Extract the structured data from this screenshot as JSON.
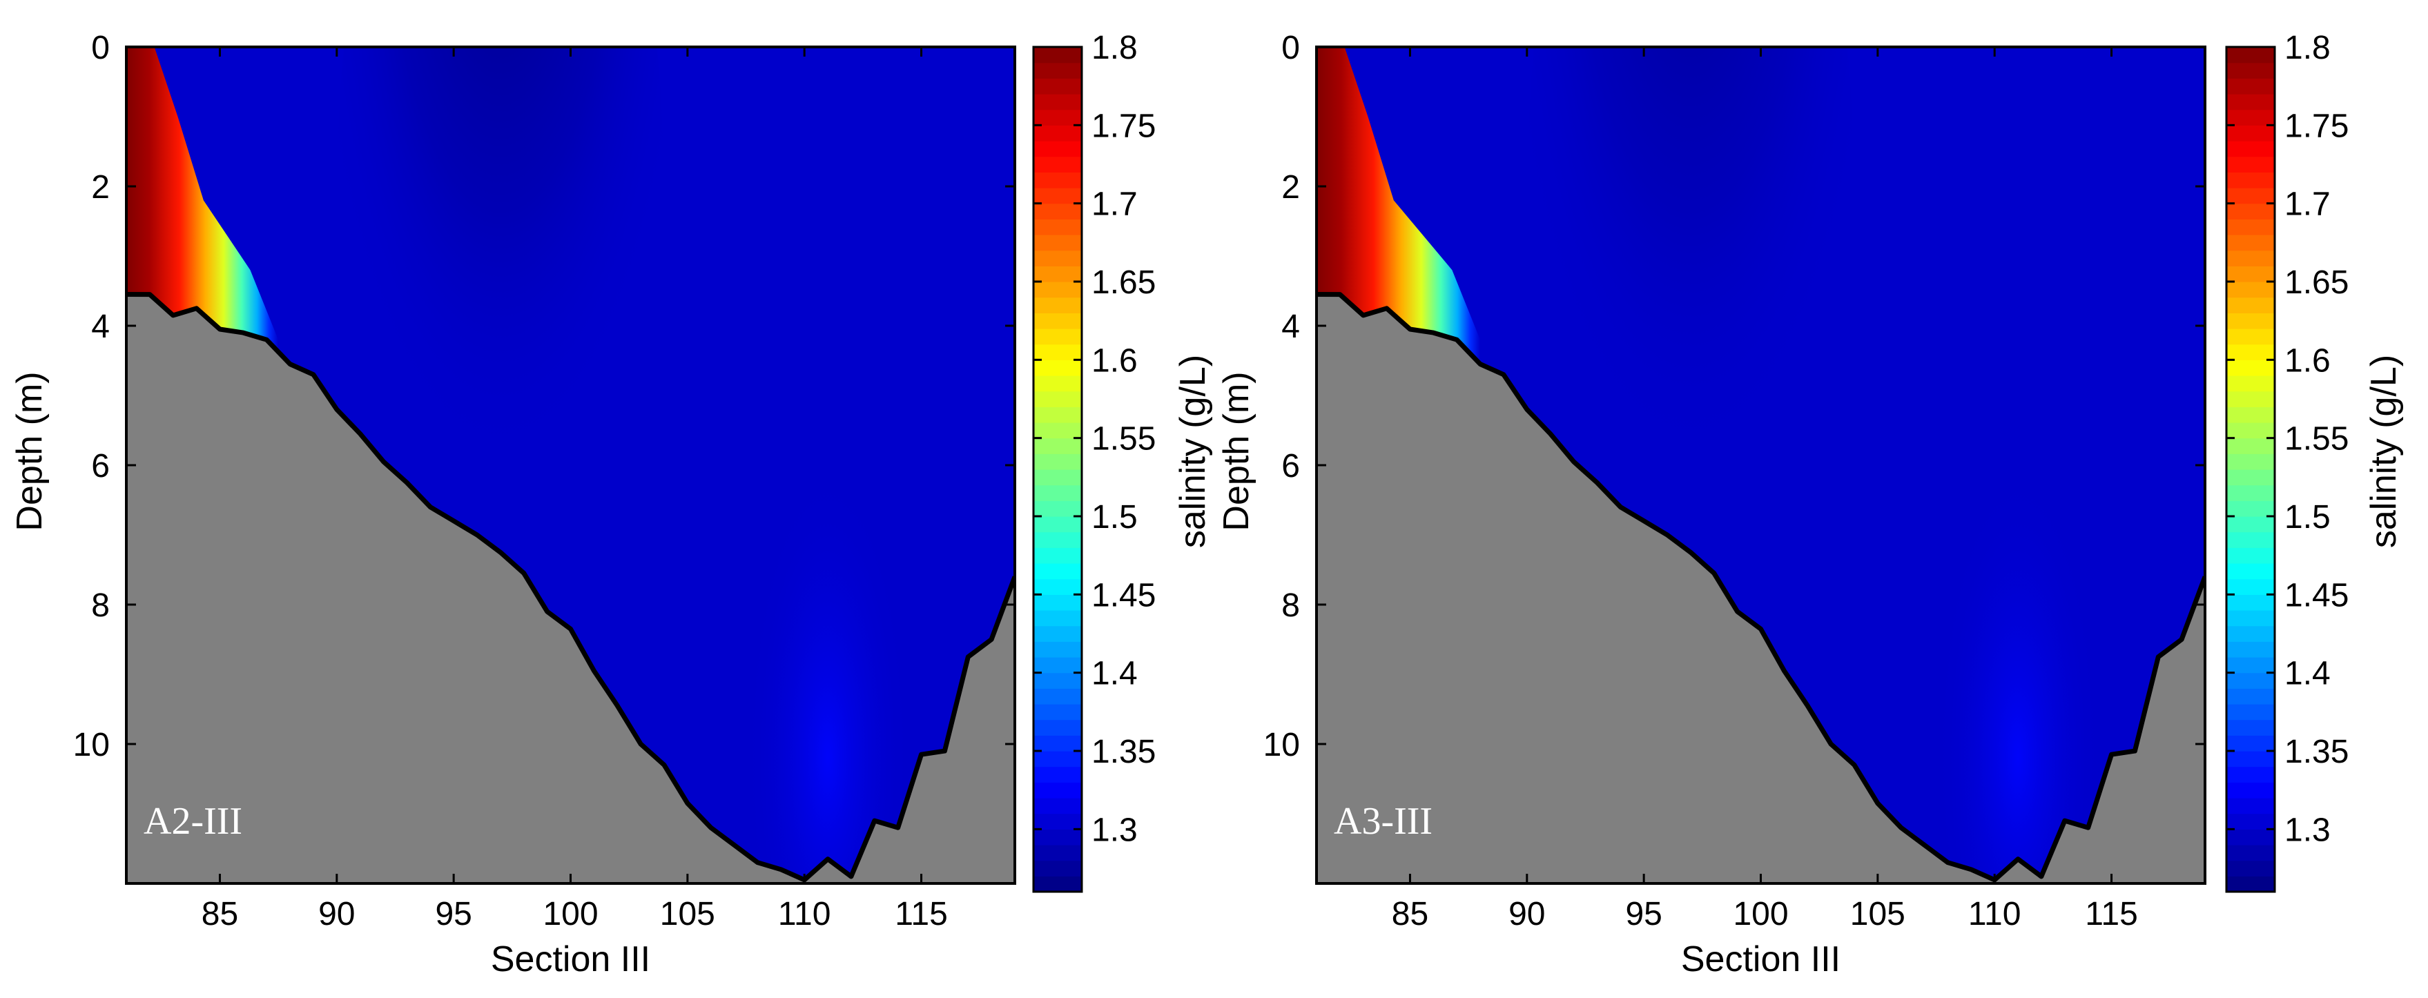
{
  "chart_data": [
    {
      "type": "contourf",
      "panel_label": "A2-III",
      "xlabel": "Section III",
      "ylabel": "Depth (m)",
      "colorbar_label": "salinity (g/L)",
      "xlim": [
        81,
        119
      ],
      "ylim": [
        12,
        0
      ],
      "x_ticks": [
        85,
        90,
        95,
        100,
        105,
        110,
        115
      ],
      "y_ticks": [
        0,
        2,
        4,
        6,
        8,
        10
      ],
      "clim": [
        1.26,
        1.8
      ],
      "colorbar_ticks": [
        1.3,
        1.35,
        1.4,
        1.45,
        1.5,
        1.55,
        1.6,
        1.65,
        1.7,
        1.75,
        1.8
      ],
      "colormap": "jet",
      "bed_color": "#808080",
      "bed_profile": {
        "x": [
          81,
          82,
          83,
          84,
          85,
          86,
          87,
          88,
          89,
          90,
          91,
          92,
          93,
          94,
          95,
          96,
          97,
          98,
          99,
          100,
          101,
          102,
          103,
          104,
          105,
          106,
          107,
          108,
          109,
          110,
          111,
          112,
          113,
          114,
          115,
          116,
          117,
          118,
          119
        ],
        "depth": [
          3.55,
          3.55,
          3.85,
          3.75,
          4.05,
          4.1,
          4.2,
          4.55,
          4.7,
          5.2,
          5.55,
          5.95,
          6.25,
          6.6,
          6.8,
          7.0,
          7.25,
          7.55,
          8.1,
          8.35,
          8.95,
          9.45,
          10.0,
          10.3,
          10.85,
          11.2,
          11.45,
          11.7,
          11.8,
          11.95,
          11.65,
          11.9,
          11.1,
          11.2,
          10.15,
          10.1,
          8.75,
          8.5,
          7.6
        ]
      },
      "salinity_features": {
        "high_salinity_core_x": [
          81,
          87.5
        ],
        "high_salinity_core_max": 1.8,
        "low_salinity_core_x": 97,
        "low_salinity_core_min": 1.26,
        "background": 1.3
      }
    },
    {
      "type": "contourf",
      "panel_label": "A3-III",
      "xlabel": "Section III",
      "ylabel": "Depth (m)",
      "colorbar_label": "salinity (g/L)",
      "xlim": [
        81,
        119
      ],
      "ylim": [
        12,
        0
      ],
      "x_ticks": [
        85,
        90,
        95,
        100,
        105,
        110,
        115
      ],
      "y_ticks": [
        0,
        2,
        4,
        6,
        8,
        10
      ],
      "clim": [
        1.26,
        1.8
      ],
      "colorbar_ticks": [
        1.3,
        1.35,
        1.4,
        1.45,
        1.5,
        1.55,
        1.6,
        1.65,
        1.7,
        1.75,
        1.8
      ],
      "colormap": "jet",
      "bed_color": "#808080",
      "bed_profile": {
        "x": [
          81,
          82,
          83,
          84,
          85,
          86,
          87,
          88,
          89,
          90,
          91,
          92,
          93,
          94,
          95,
          96,
          97,
          98,
          99,
          100,
          101,
          102,
          103,
          104,
          105,
          106,
          107,
          108,
          109,
          110,
          111,
          112,
          113,
          114,
          115,
          116,
          117,
          118,
          119
        ],
        "depth": [
          3.55,
          3.55,
          3.85,
          3.75,
          4.05,
          4.1,
          4.2,
          4.55,
          4.7,
          5.2,
          5.55,
          5.95,
          6.25,
          6.6,
          6.8,
          7.0,
          7.25,
          7.55,
          8.1,
          8.35,
          8.95,
          9.45,
          10.0,
          10.3,
          10.85,
          11.2,
          11.45,
          11.7,
          11.8,
          11.95,
          11.65,
          11.9,
          11.1,
          11.2,
          10.15,
          10.1,
          8.75,
          8.5,
          7.6
        ]
      },
      "salinity_features": {
        "high_salinity_core_x": [
          81,
          88
        ],
        "high_salinity_core_max": 1.8,
        "low_salinity_core_x": 97,
        "low_salinity_core_min": 1.27,
        "background": 1.3
      }
    }
  ]
}
